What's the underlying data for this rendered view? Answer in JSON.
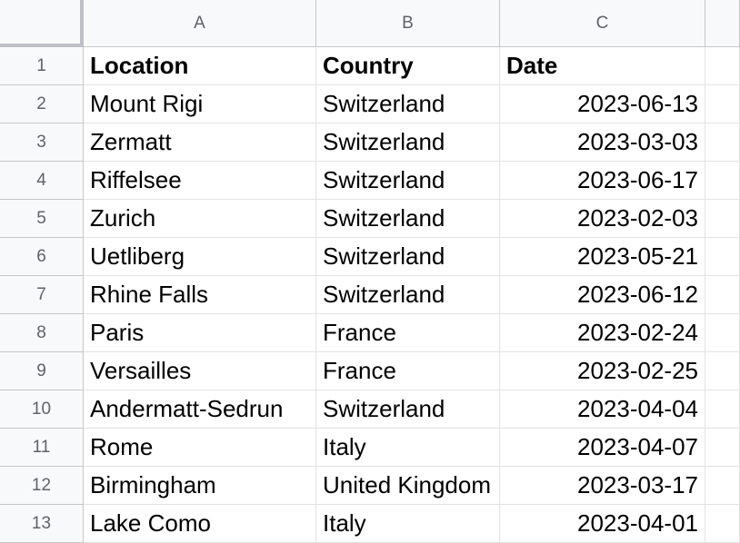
{
  "columns": [
    "A",
    "B",
    "C"
  ],
  "rows": [
    {
      "num": "1",
      "cells": [
        "Location",
        "Country",
        "Date"
      ],
      "header": true
    },
    {
      "num": "2",
      "cells": [
        "Mount Rigi",
        "Switzerland",
        "2023-06-13"
      ]
    },
    {
      "num": "3",
      "cells": [
        "Zermatt",
        "Switzerland",
        "2023-03-03"
      ]
    },
    {
      "num": "4",
      "cells": [
        "Riffelsee",
        "Switzerland",
        "2023-06-17"
      ]
    },
    {
      "num": "5",
      "cells": [
        "Zurich",
        "Switzerland",
        "2023-02-03"
      ]
    },
    {
      "num": "6",
      "cells": [
        "Uetliberg",
        "Switzerland",
        "2023-05-21"
      ]
    },
    {
      "num": "7",
      "cells": [
        "Rhine Falls",
        "Switzerland",
        "2023-06-12"
      ]
    },
    {
      "num": "8",
      "cells": [
        "Paris",
        "France",
        "2023-02-24"
      ]
    },
    {
      "num": "9",
      "cells": [
        "Versailles",
        "France",
        "2023-02-25"
      ]
    },
    {
      "num": "10",
      "cells": [
        "Andermatt-Sedrun",
        "Switzerland",
        "2023-04-04"
      ]
    },
    {
      "num": "11",
      "cells": [
        "Rome",
        "Italy",
        "2023-04-07"
      ]
    },
    {
      "num": "12",
      "cells": [
        "Birmingham",
        "United Kingdom",
        "2023-03-17"
      ]
    },
    {
      "num": "13",
      "cells": [
        "Lake Como",
        "Italy",
        "2023-04-01"
      ]
    }
  ]
}
